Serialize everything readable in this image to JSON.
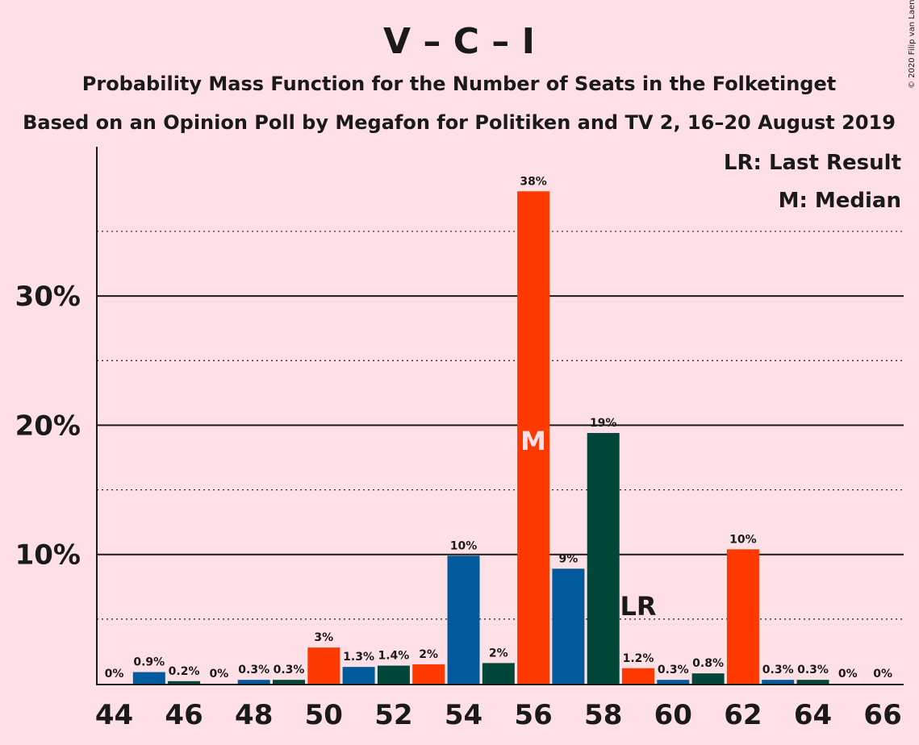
{
  "chart_data": {
    "type": "bar",
    "title": "V – C – I",
    "subtitle_1": "Probability Mass Function for the Number of Seats in the Folketinget",
    "subtitle_2": "Based on an Opinion Poll by Megafon for Politiken and TV 2, 16–20 August 2019",
    "copyright": "© 2020 Filip van Laenen",
    "legend": {
      "last_result": "LR: Last Result",
      "median": "M: Median",
      "placement": "top-right"
    },
    "markers": {
      "median_label": "M",
      "median_seat": 56,
      "last_result_label": "LR",
      "last_result_seat": 59
    },
    "ylim": [
      0,
      40
    ],
    "y_ticks": [
      {
        "value": 10,
        "label": "10%"
      },
      {
        "value": 20,
        "label": "20%"
      },
      {
        "value": 30,
        "label": "30%"
      }
    ],
    "y_dotted": [
      5,
      15,
      25,
      35
    ],
    "x_ticks": [
      44,
      46,
      48,
      50,
      52,
      54,
      56,
      58,
      60,
      62,
      64,
      66
    ],
    "colors": {
      "blue": "#005a9c",
      "red": "#ff3a00",
      "green": "#00473a"
    },
    "bars": [
      {
        "seats": 44,
        "value": 0,
        "label": "0%",
        "color": "blue"
      },
      {
        "seats": 45,
        "value": 0.9,
        "label": "0.9%",
        "color": "blue"
      },
      {
        "seats": 46,
        "value": 0.2,
        "label": "0.2%",
        "color": "green"
      },
      {
        "seats": 47,
        "value": 0,
        "label": "0%",
        "color": "red"
      },
      {
        "seats": 48,
        "value": 0.3,
        "label": "0.3%",
        "color": "blue"
      },
      {
        "seats": 49,
        "value": 0.3,
        "label": "0.3%",
        "color": "green"
      },
      {
        "seats": 50,
        "value": 2.8,
        "label": "3%",
        "color": "red"
      },
      {
        "seats": 51,
        "value": 1.3,
        "label": "1.3%",
        "color": "blue"
      },
      {
        "seats": 52,
        "value": 1.4,
        "label": "1.4%",
        "color": "green"
      },
      {
        "seats": 53,
        "value": 1.5,
        "label": "2%",
        "color": "red"
      },
      {
        "seats": 54,
        "value": 9.9,
        "label": "10%",
        "color": "blue"
      },
      {
        "seats": 55,
        "value": 1.6,
        "label": "2%",
        "color": "green"
      },
      {
        "seats": 56,
        "value": 38.1,
        "label": "38%",
        "color": "red"
      },
      {
        "seats": 57,
        "value": 8.9,
        "label": "9%",
        "color": "blue"
      },
      {
        "seats": 58,
        "value": 19.4,
        "label": "19%",
        "color": "green"
      },
      {
        "seats": 59,
        "value": 1.2,
        "label": "1.2%",
        "color": "red"
      },
      {
        "seats": 60,
        "value": 0.3,
        "label": "0.3%",
        "color": "blue"
      },
      {
        "seats": 61,
        "value": 0.8,
        "label": "0.8%",
        "color": "green"
      },
      {
        "seats": 62,
        "value": 10.4,
        "label": "10%",
        "color": "red"
      },
      {
        "seats": 63,
        "value": 0.3,
        "label": "0.3%",
        "color": "blue"
      },
      {
        "seats": 64,
        "value": 0.3,
        "label": "0.3%",
        "color": "green"
      },
      {
        "seats": 65,
        "value": 0,
        "label": "0%",
        "color": "red"
      },
      {
        "seats": 66,
        "value": 0,
        "label": "0%",
        "color": "blue"
      }
    ]
  }
}
